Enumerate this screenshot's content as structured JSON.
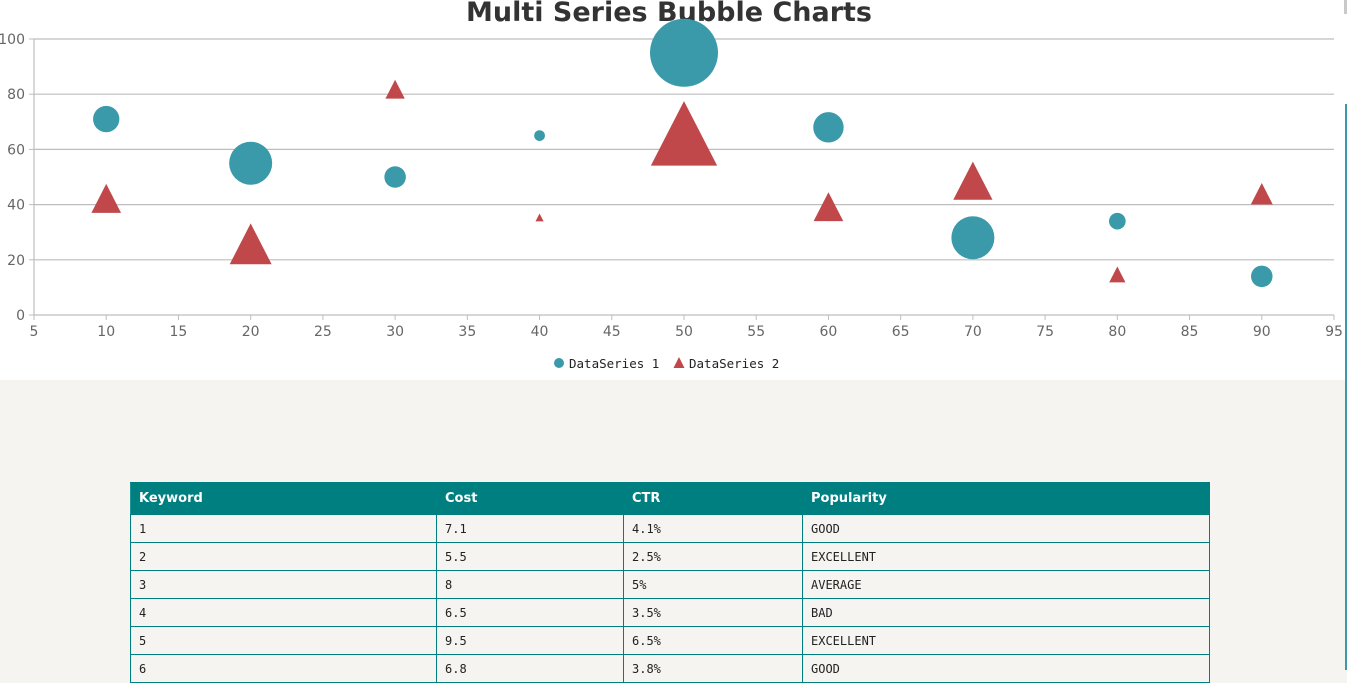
{
  "chart_data": {
    "type": "scatter",
    "title": "Multi Series Bubble Charts",
    "xlim": [
      5,
      95
    ],
    "ylim": [
      0,
      100
    ],
    "x_ticks": [
      "5",
      "10",
      "15",
      "20",
      "25",
      "30",
      "35",
      "40",
      "45",
      "50",
      "55",
      "60",
      "65",
      "70",
      "75",
      "80",
      "85",
      "90",
      "95"
    ],
    "y_ticks": [
      "0",
      "20",
      "40",
      "60",
      "80",
      "100"
    ],
    "grid": true,
    "legend_position": "bottom-center",
    "series": [
      {
        "name": "DataSeries 1",
        "marker": "circle",
        "color": "#3a9aaa",
        "points": [
          {
            "x": 10,
            "y": 71,
            "size": 3
          },
          {
            "x": 20,
            "y": 55,
            "size": 8
          },
          {
            "x": 30,
            "y": 50,
            "size": 2
          },
          {
            "x": 40,
            "y": 65,
            "size": 0.5
          },
          {
            "x": 50,
            "y": 95,
            "size": 20
          },
          {
            "x": 60,
            "y": 68,
            "size": 4
          },
          {
            "x": 70,
            "y": 28,
            "size": 8
          },
          {
            "x": 80,
            "y": 34,
            "size": 1.2
          },
          {
            "x": 90,
            "y": 14,
            "size": 2
          }
        ]
      },
      {
        "name": "DataSeries 2",
        "marker": "triangle",
        "color": "#c0484a",
        "points": [
          {
            "x": 10,
            "y": 41,
            "size": 4
          },
          {
            "x": 20,
            "y": 24,
            "size": 8
          },
          {
            "x": 30,
            "y": 81,
            "size": 1.7
          },
          {
            "x": 40,
            "y": 35,
            "size": 0.3
          },
          {
            "x": 50,
            "y": 63,
            "size": 20
          },
          {
            "x": 60,
            "y": 38,
            "size": 4
          },
          {
            "x": 70,
            "y": 47,
            "size": 7
          },
          {
            "x": 80,
            "y": 14,
            "size": 1.2
          },
          {
            "x": 90,
            "y": 43,
            "size": 2.2
          }
        ]
      }
    ]
  },
  "table": {
    "headers": [
      "Keyword",
      "Cost",
      "CTR",
      "Popularity"
    ],
    "rows": [
      [
        "1",
        "7.1",
        "4.1%",
        "GOOD"
      ],
      [
        "2",
        "5.5",
        "2.5%",
        "EXCELLENT"
      ],
      [
        "3",
        "8",
        "5%",
        "AVERAGE"
      ],
      [
        "4",
        "6.5",
        "3.5%",
        "BAD"
      ],
      [
        "5",
        "9.5",
        "6.5%",
        "EXCELLENT"
      ],
      [
        "6",
        "6.8",
        "3.8%",
        "GOOD"
      ]
    ]
  }
}
